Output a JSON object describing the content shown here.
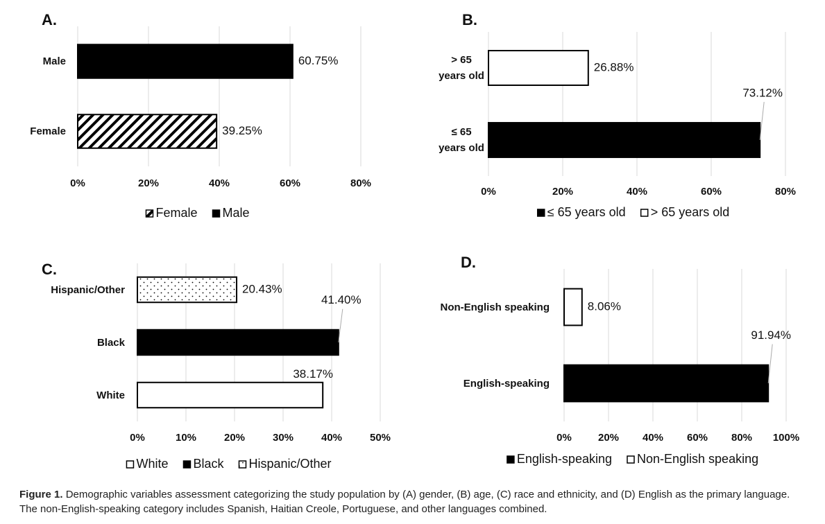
{
  "chart_data": [
    {
      "type": "bar",
      "orientation": "horizontal",
      "title": "A.",
      "categories": [
        "Male",
        "Female"
      ],
      "series": [
        {
          "name": "Female",
          "fill": "hatch",
          "values": [
            null,
            39.25
          ],
          "value_labels": [
            null,
            "39.25%"
          ],
          "label_position": "right"
        },
        {
          "name": "Male",
          "fill": "black",
          "values": [
            60.75,
            null
          ],
          "value_labels": [
            "60.75%",
            null
          ],
          "label_position": "right"
        }
      ],
      "xlim": [
        0,
        80
      ],
      "xticks": [
        {
          "value": 0,
          "label": "0%"
        },
        {
          "value": 20,
          "label": "20%"
        },
        {
          "value": 40,
          "label": "40%"
        },
        {
          "value": 60,
          "label": "60%"
        },
        {
          "value": 80,
          "label": "80%"
        }
      ],
      "grid": true,
      "legend": "bottom"
    },
    {
      "type": "bar",
      "orientation": "horizontal",
      "title": "B.",
      "categories": [
        "> 65 years old",
        "≤ 65 years old"
      ],
      "series": [
        {
          "name": "≤ 65 years old",
          "fill": "black",
          "values": [
            null,
            73.12
          ],
          "value_labels": [
            null,
            "73.12%"
          ],
          "label_position": "callout"
        },
        {
          "name": "> 65 years old",
          "fill": "white",
          "values": [
            26.88,
            null
          ],
          "value_labels": [
            "26.88%",
            null
          ],
          "label_position": "right"
        }
      ],
      "xlim": [
        0,
        80
      ],
      "xticks": [
        {
          "value": 0,
          "label": "0%"
        },
        {
          "value": 20,
          "label": "20%"
        },
        {
          "value": 40,
          "label": "40%"
        },
        {
          "value": 60,
          "label": "60%"
        },
        {
          "value": 80,
          "label": "80%"
        }
      ],
      "grid": true,
      "legend": "bottom"
    },
    {
      "type": "bar",
      "orientation": "horizontal",
      "title": "C.",
      "categories": [
        "Hispanic/Other",
        "Black",
        "White"
      ],
      "series": [
        {
          "name": "White",
          "fill": "white",
          "values": [
            null,
            null,
            38.17
          ],
          "value_labels": [
            null,
            null,
            "38.17%"
          ],
          "label_position": "above"
        },
        {
          "name": "Black",
          "fill": "black",
          "values": [
            null,
            41.4,
            null
          ],
          "value_labels": [
            null,
            "41.40%",
            null
          ],
          "label_position": "callout"
        },
        {
          "name": "Hispanic/Other",
          "fill": "dots",
          "values": [
            20.43,
            null,
            null
          ],
          "value_labels": [
            "20.43%",
            null,
            null
          ],
          "label_position": "right"
        }
      ],
      "xlim": [
        0,
        50
      ],
      "xticks": [
        {
          "value": 0,
          "label": "0%"
        },
        {
          "value": 10,
          "label": "10%"
        },
        {
          "value": 20,
          "label": "20%"
        },
        {
          "value": 30,
          "label": "30%"
        },
        {
          "value": 40,
          "label": "40%"
        },
        {
          "value": 50,
          "label": "50%"
        }
      ],
      "grid": true,
      "legend": "bottom"
    },
    {
      "type": "bar",
      "orientation": "horizontal",
      "title": "D.",
      "categories": [
        "Non-English speaking",
        "English-speaking"
      ],
      "series": [
        {
          "name": "English-speaking",
          "fill": "black",
          "values": [
            null,
            91.94
          ],
          "value_labels": [
            null,
            "91.94%"
          ],
          "label_position": "callout"
        },
        {
          "name": "Non-English speaking",
          "fill": "white",
          "values": [
            8.06,
            null
          ],
          "value_labels": [
            "8.06%",
            null
          ],
          "label_position": "right"
        }
      ],
      "xlim": [
        0,
        100
      ],
      "xticks": [
        {
          "value": 0,
          "label": "0%"
        },
        {
          "value": 20,
          "label": "20%"
        },
        {
          "value": 40,
          "label": "40%"
        },
        {
          "value": 60,
          "label": "60%"
        },
        {
          "value": 80,
          "label": "80%"
        },
        {
          "value": 100,
          "label": "100%"
        }
      ],
      "grid": true,
      "legend": "bottom"
    }
  ],
  "caption": {
    "label": "Figure 1.",
    "text": "Demographic variables assessment categorizing the study population by (A) gender, (B) age, (C) race and ethnicity, and (D) English as the primary language. The non-English-speaking category includes Spanish, Haitian Creole, Portuguese, and other languages combined."
  }
}
